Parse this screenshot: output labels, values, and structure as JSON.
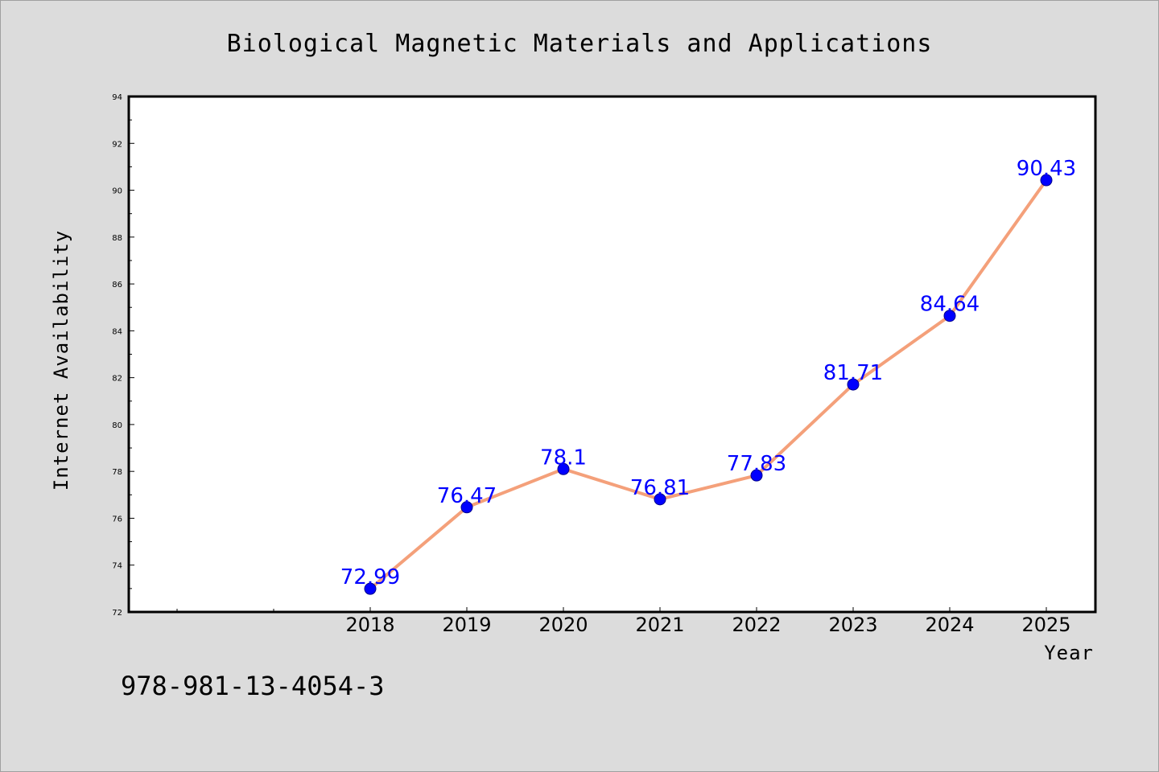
{
  "chart_data": {
    "type": "line",
    "title": "Biological Magnetic Materials and Applications",
    "xlabel": "Year",
    "ylabel": "Internet Availability",
    "x": [
      "2018",
      "2019",
      "2020",
      "2021",
      "2022",
      "2023",
      "2024",
      "2025"
    ],
    "y": [
      72.99,
      76.47,
      78.1,
      76.81,
      77.83,
      81.71,
      84.64,
      90.43
    ],
    "data_labels": [
      "72.99",
      "76.47",
      "78.1",
      "76.81",
      "77.83",
      "81.71",
      "84.64",
      "90.43"
    ],
    "yticks": [
      "72",
      "74",
      "76",
      "78",
      "80",
      "82",
      "84",
      "86",
      "88",
      "90",
      "92",
      "94"
    ],
    "ylim": [
      72,
      94
    ],
    "grid": false,
    "line_color": "#f4a07a",
    "marker_color": "#0000ff",
    "label_color": "#0000ff"
  },
  "footer": {
    "isbn": "978-981-13-4054-3"
  }
}
